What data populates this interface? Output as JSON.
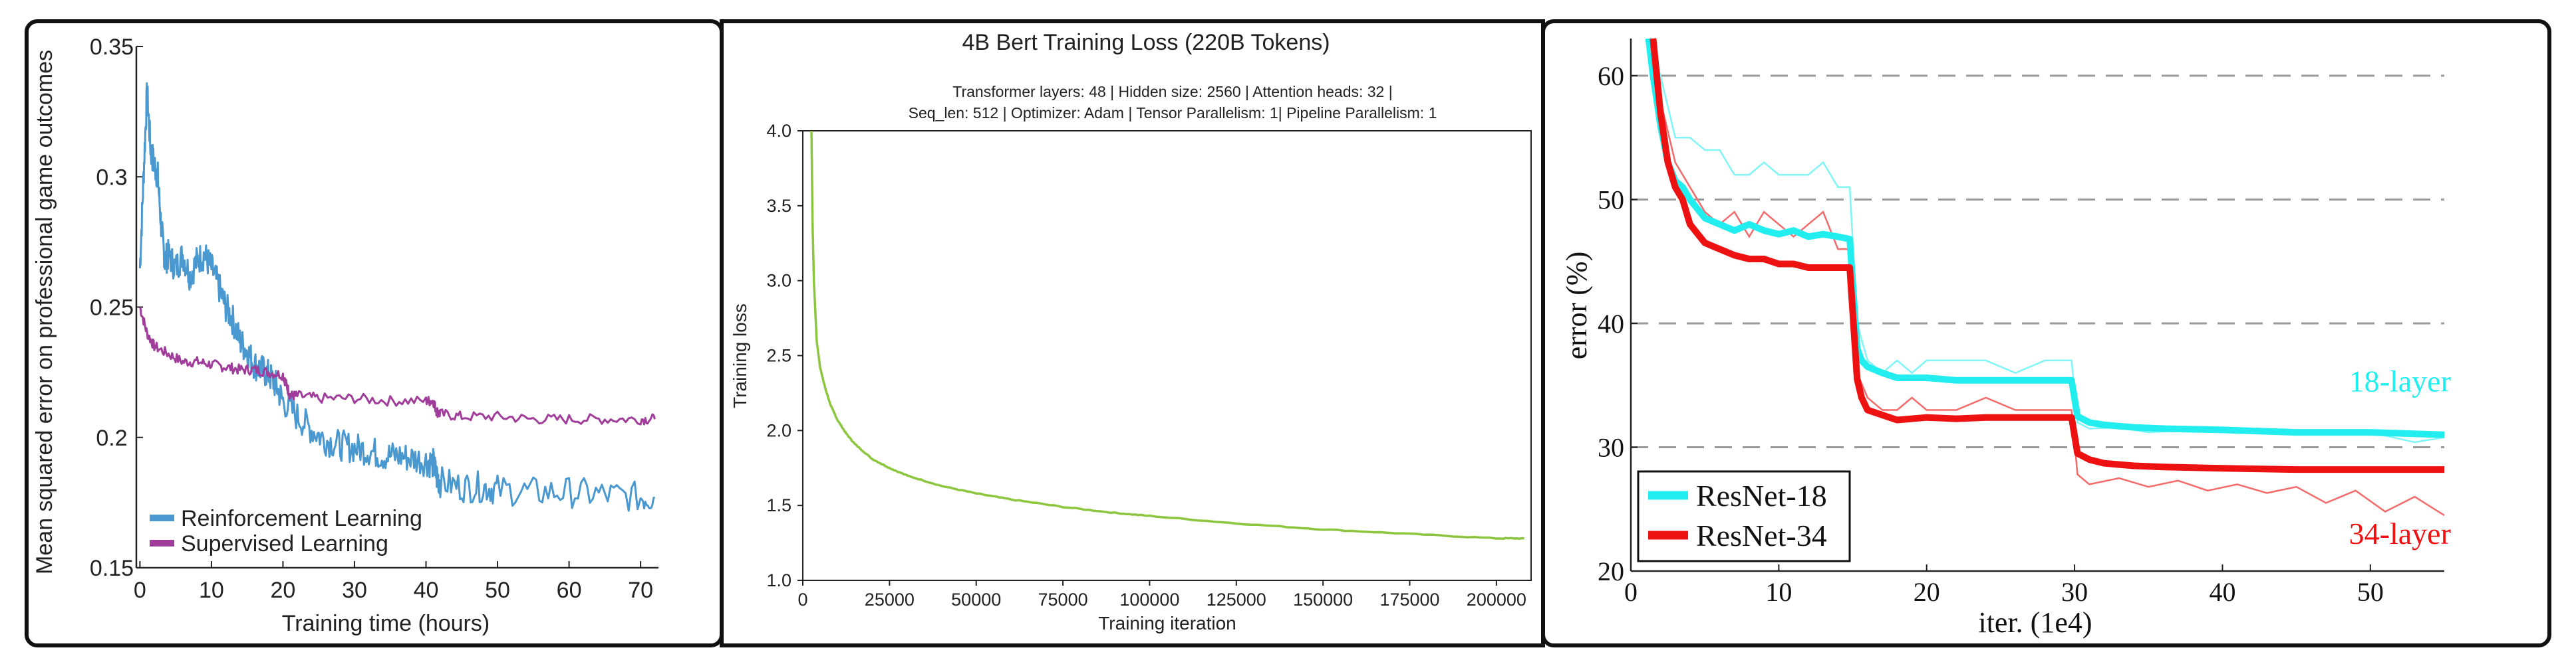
{
  "colors": {
    "rl": "#4a98d0",
    "sl": "#a03c9a",
    "bert": "#8cc63f",
    "resnet18": "#22eef0",
    "resnet34": "#ee1111",
    "resnet18_thin": "#7ff5f7",
    "resnet34_thin": "#f46a6a",
    "grid": "#999999",
    "frame": "#111111"
  },
  "chart_data": [
    {
      "type": "line",
      "title": "",
      "xlabel": "Training time (hours)",
      "ylabel": "Mean squared error on professional game outcomes",
      "xlim": [
        0,
        72
      ],
      "ylim": [
        0.15,
        0.35
      ],
      "x_ticks": [
        "0",
        "10",
        "20",
        "30",
        "40",
        "50",
        "60",
        "70"
      ],
      "y_ticks": [
        "0.15",
        "0.2",
        "0.25",
        "0.3",
        "0.35"
      ],
      "grid": false,
      "legend_position": "bottom-left",
      "series": [
        {
          "name": "Reinforcement Learning",
          "color_key": "rl",
          "x": [
            0,
            0.5,
            1,
            1.5,
            2,
            2.5,
            3,
            3.5,
            4,
            5,
            6,
            7,
            8,
            9,
            10,
            11,
            12,
            13,
            14,
            15,
            16,
            17,
            18,
            19,
            20,
            22,
            24,
            26,
            28,
            30,
            32,
            34,
            36,
            38,
            40,
            41,
            41.5,
            42,
            45,
            48,
            50,
            55,
            60,
            65,
            70,
            72
          ],
          "y": [
            0.265,
            0.3,
            0.333,
            0.31,
            0.305,
            0.3,
            0.28,
            0.268,
            0.27,
            0.265,
            0.27,
            0.262,
            0.268,
            0.27,
            0.265,
            0.258,
            0.25,
            0.245,
            0.237,
            0.233,
            0.228,
            0.226,
            0.224,
            0.22,
            0.214,
            0.208,
            0.203,
            0.199,
            0.197,
            0.196,
            0.195,
            0.193,
            0.193,
            0.192,
            0.191,
            0.19,
            0.185,
            0.183,
            0.181,
            0.181,
            0.18,
            0.179,
            0.179,
            0.178,
            0.177,
            0.177
          ]
        },
        {
          "name": "Supervised Learning",
          "color_key": "sl",
          "x": [
            0,
            1,
            2,
            4,
            6,
            8,
            10,
            12,
            14,
            16,
            18,
            20,
            20.5,
            21,
            22,
            25,
            30,
            35,
            40,
            41,
            41.5,
            42,
            45,
            50,
            55,
            60,
            65,
            70,
            72
          ],
          "y": [
            0.25,
            0.24,
            0.235,
            0.232,
            0.229,
            0.229,
            0.228,
            0.227,
            0.226,
            0.226,
            0.225,
            0.224,
            0.22,
            0.216,
            0.216,
            0.215,
            0.215,
            0.214,
            0.214,
            0.214,
            0.21,
            0.209,
            0.208,
            0.208,
            0.207,
            0.207,
            0.207,
            0.207,
            0.207
          ]
        }
      ]
    },
    {
      "type": "line",
      "title": "4B Bert Training Loss (220B Tokens)",
      "subtitle_lines": [
        "Transformer layers: 48 | Hidden size: 2560 | Attention heads: 32 |",
        "Seq_len: 512 | Optimizer: Adam | Tensor Parallelism: 1| Pipeline Parallelism: 1"
      ],
      "xlabel": "Training iteration",
      "ylabel": "Training loss",
      "xlim": [
        0,
        210000
      ],
      "ylim": [
        1.0,
        4.0
      ],
      "x_ticks": [
        "0",
        "25000",
        "50000",
        "75000",
        "100000",
        "125000",
        "150000",
        "175000",
        "200000"
      ],
      "y_ticks": [
        "1.0",
        "1.5",
        "2.0",
        "2.5",
        "3.0",
        "3.5",
        "4.0"
      ],
      "grid": false,
      "series": [
        {
          "color_key": "bert",
          "x": [
            2500,
            2800,
            3200,
            4000,
            5000,
            6500,
            8000,
            10000,
            12500,
            15000,
            20000,
            25000,
            30000,
            40000,
            50000,
            60000,
            75000,
            90000,
            100000,
            125000,
            150000,
            175000,
            200000,
            208000
          ],
          "y": [
            4.0,
            3.4,
            3.0,
            2.6,
            2.42,
            2.28,
            2.17,
            2.07,
            1.98,
            1.91,
            1.81,
            1.75,
            1.7,
            1.63,
            1.58,
            1.54,
            1.49,
            1.45,
            1.43,
            1.38,
            1.34,
            1.31,
            1.28,
            1.28
          ]
        }
      ]
    },
    {
      "type": "line",
      "title": "",
      "xlabel": "iter. (1e4)",
      "ylabel": "error (%)",
      "xlim": [
        0,
        55
      ],
      "ylim": [
        20,
        63
      ],
      "x_ticks": [
        "0",
        "10",
        "20",
        "30",
        "40",
        "50"
      ],
      "y_ticks": [
        "20",
        "30",
        "40",
        "50",
        "60"
      ],
      "grid": "horizontal dashed at 30, 40, 50, 60",
      "legend_position": "bottom-left",
      "annotations": [
        {
          "text": "18-layer",
          "color_key": "resnet18",
          "x": 52,
          "y": 34.5
        },
        {
          "text": "34-layer",
          "color_key": "resnet34",
          "x": 52,
          "y": 22.2
        }
      ],
      "series": [
        {
          "name": "ResNet-18",
          "color_key": "resnet18",
          "x": [
            1.2,
            1.5,
            2,
            2.5,
            3,
            3.5,
            4,
            5,
            6,
            7,
            8,
            9,
            10,
            11,
            12,
            13,
            14,
            14.8,
            15.3,
            15.6,
            16,
            17,
            18,
            20,
            22,
            24,
            26,
            28,
            29.8,
            30.2,
            31,
            32,
            34,
            36,
            40,
            45,
            50,
            55
          ],
          "y": [
            63,
            60,
            56,
            53,
            51.5,
            51,
            50,
            48.5,
            48,
            47.5,
            48,
            47.5,
            47.2,
            47.5,
            47,
            47.2,
            47,
            46.8,
            38,
            37,
            36.5,
            36,
            35.6,
            35.6,
            35.4,
            35.4,
            35.4,
            35.4,
            35.4,
            32.5,
            32,
            31.8,
            31.6,
            31.5,
            31.4,
            31.2,
            31.2,
            31.0
          ]
        },
        {
          "name": "ResNet-34",
          "color_key": "resnet34",
          "x": [
            1.5,
            2,
            2.5,
            3,
            3.5,
            4,
            5,
            6,
            7,
            8,
            9,
            10,
            11,
            12,
            13,
            14,
            14.8,
            15.3,
            15.6,
            16,
            17,
            18,
            20,
            22,
            24,
            26,
            28,
            29.8,
            30.2,
            31,
            32,
            34,
            36,
            40,
            45,
            50,
            55
          ],
          "y": [
            63,
            57,
            53,
            51,
            50,
            48,
            46.5,
            46,
            45.5,
            45.2,
            45.2,
            44.8,
            44.8,
            44.5,
            44.5,
            44.5,
            44.5,
            35.5,
            34,
            33,
            32.6,
            32.2,
            32.4,
            32.3,
            32.4,
            32.4,
            32.4,
            32.4,
            29.5,
            29.0,
            28.7,
            28.5,
            28.4,
            28.3,
            28.2,
            28.2,
            28.2
          ]
        }
      ],
      "thin_series": [
        {
          "color_key": "resnet18_thin",
          "x": [
            1.5,
            2,
            3,
            4,
            5,
            6,
            7,
            8,
            9,
            10,
            11,
            12,
            13,
            14,
            14.8,
            15.3,
            16,
            17,
            18,
            19,
            20,
            22,
            24,
            26,
            28,
            29.8,
            30.2,
            31,
            33,
            35,
            38,
            41,
            44,
            47,
            50,
            53,
            55
          ],
          "y": [
            62,
            60,
            55,
            55,
            54,
            54,
            52,
            52,
            53,
            52,
            52,
            52,
            53,
            51,
            51,
            40,
            37,
            36,
            37,
            36,
            37,
            37,
            37,
            36,
            37,
            37,
            32,
            31.5,
            31.6,
            31.2,
            31.4,
            31.3,
            31.1,
            31.0,
            31.2,
            30.4,
            30.8
          ]
        },
        {
          "color_key": "resnet34_thin",
          "x": [
            1.5,
            2,
            3,
            4,
            5,
            6,
            7,
            8,
            9,
            10,
            11,
            12,
            13,
            14,
            14.8,
            15.3,
            16,
            17,
            18,
            19,
            20,
            22,
            24,
            26,
            28,
            29.8,
            30.2,
            31,
            33,
            35,
            37,
            39,
            41,
            43,
            45,
            47,
            49,
            51,
            53,
            55
          ],
          "y": [
            63,
            58,
            53,
            51,
            49,
            48,
            49,
            47,
            49,
            48,
            47,
            48,
            49,
            46,
            46,
            36,
            34,
            33,
            33,
            34,
            33,
            33,
            34,
            33,
            33,
            33,
            27.8,
            27,
            27.5,
            26.8,
            27.3,
            26.5,
            27,
            26.3,
            26.8,
            25.5,
            26.5,
            24.8,
            26,
            24.5
          ]
        }
      ]
    }
  ]
}
